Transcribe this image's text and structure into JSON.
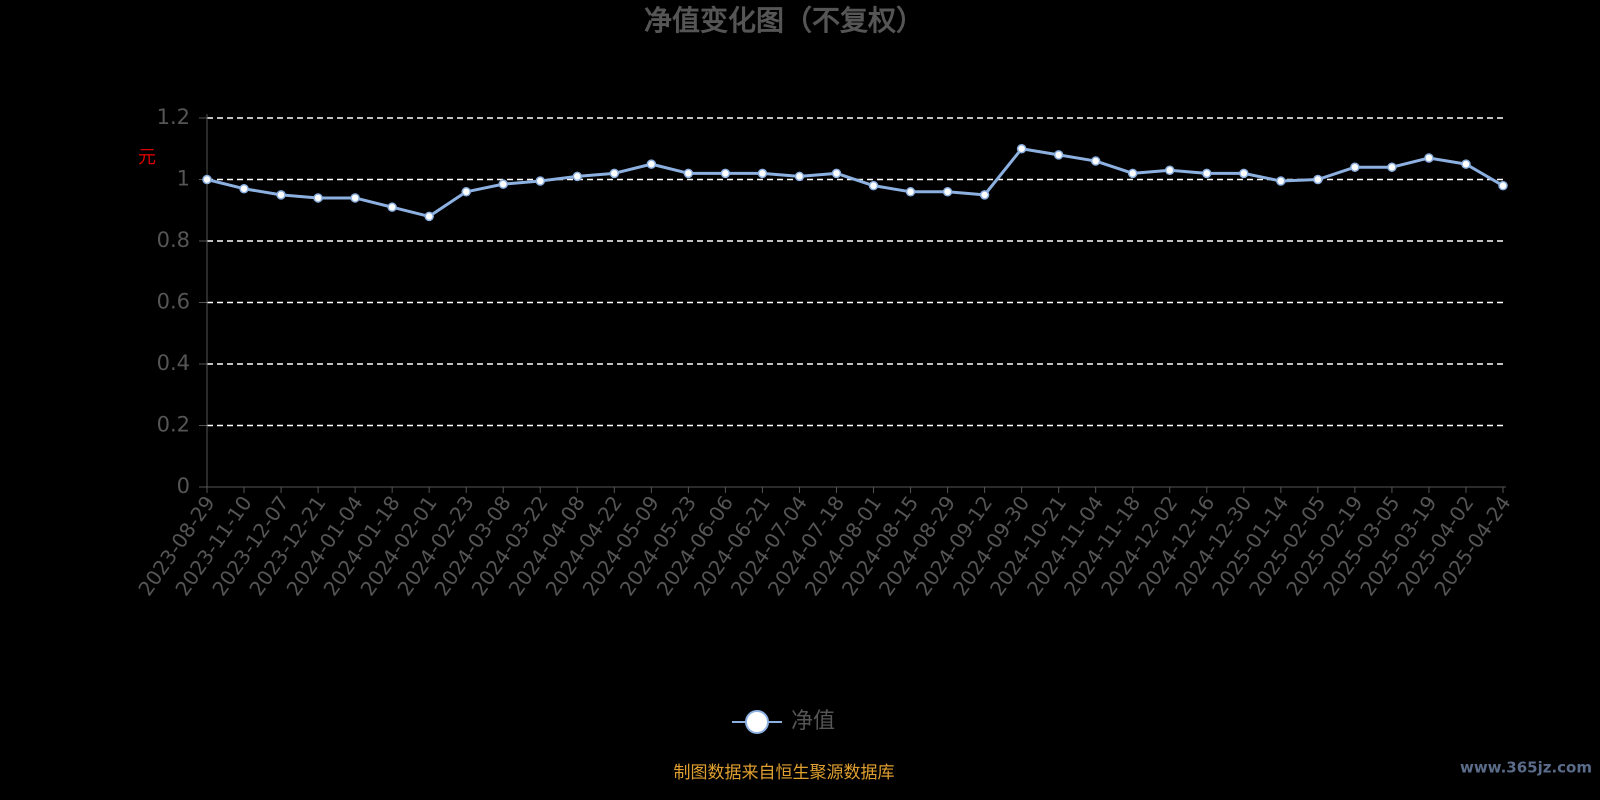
{
  "chart_data": {
    "type": "line",
    "title": "净值变化图（不复权）",
    "y_label": "元",
    "source": "制图数据来自恒生聚源数据库",
    "watermark": "www.365jz.com",
    "categories": [
      "2023-08-29",
      "2023-11-10",
      "2023-12-07",
      "2023-12-21",
      "2024-01-04",
      "2024-01-18",
      "2024-02-01",
      "2024-02-23",
      "2024-03-08",
      "2024-03-22",
      "2024-04-08",
      "2024-04-22",
      "2024-05-09",
      "2024-05-23",
      "2024-06-06",
      "2024-06-21",
      "2024-07-04",
      "2024-07-18",
      "2024-08-01",
      "2024-08-15",
      "2024-08-29",
      "2024-09-12",
      "2024-09-30",
      "2024-10-21",
      "2024-11-04",
      "2024-11-18",
      "2024-12-02",
      "2024-12-16",
      "2024-12-30",
      "2025-01-14",
      "2025-02-05",
      "2025-02-19",
      "2025-03-05",
      "2025-03-19",
      "2025-04-02",
      "2025-04-24"
    ],
    "series": [
      {
        "name": "净值",
        "color": "#8cb0e0",
        "values": [
          1.0,
          0.97,
          0.95,
          0.94,
          0.94,
          0.91,
          0.88,
          0.96,
          0.985,
          0.995,
          1.01,
          1.02,
          1.05,
          1.02,
          1.02,
          1.02,
          1.01,
          1.02,
          0.98,
          0.96,
          0.96,
          0.95,
          1.1,
          1.08,
          1.06,
          1.02,
          1.03,
          1.02,
          1.02,
          0.995,
          1.0,
          1.04,
          1.04,
          1.07,
          1.05,
          0.98
        ]
      }
    ],
    "ylim": [
      0,
      1.2
    ],
    "yticks": [
      0,
      0.2,
      0.4,
      0.6,
      0.8,
      1,
      1.2
    ],
    "grid": true
  }
}
